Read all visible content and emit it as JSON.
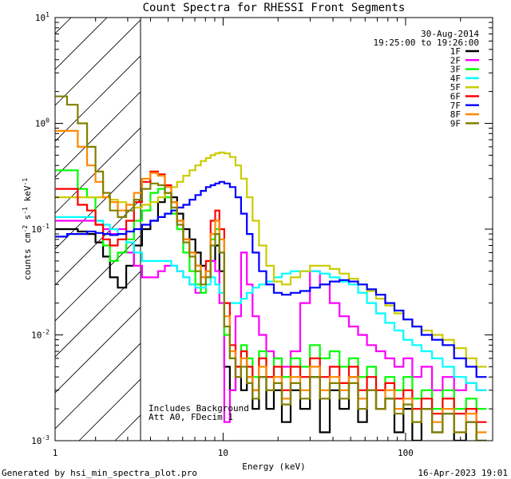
{
  "chart_data": {
    "type": "line",
    "title": "Count Spectra for RHESSI Front Segments",
    "xlabel": "Energy (keV)",
    "ylabel": "counts cm",
    "ylabel_sup1": "-2",
    "ylabel_mid": " s",
    "ylabel_sup2": "-1",
    "ylabel_end": " keV",
    "ylabel_sup3": "-1",
    "x_scale": "log",
    "y_scale": "log",
    "xlim": [
      1.2,
      300
    ],
    "ylim": [
      0.001,
      10
    ],
    "x_ticks": [
      {
        "value": 1,
        "base": "1",
        "exp": ""
      },
      {
        "value": 10,
        "base": "10",
        "exp": ""
      },
      {
        "value": 100,
        "base": "100",
        "exp": ""
      }
    ],
    "y_ticks": [
      {
        "value": 10,
        "base": "10",
        "exp": "1"
      },
      {
        "value": 1,
        "base": "10",
        "exp": "0"
      },
      {
        "value": 0.1,
        "base": "10",
        "exp": "-1"
      },
      {
        "value": 0.01,
        "base": "10",
        "exp": "-2"
      },
      {
        "value": 0.001,
        "base": "10",
        "exp": "-3"
      }
    ],
    "hatched_region": [
      1.2,
      3.0
    ],
    "date_label": "30-Aug-2014",
    "time_range": "19:25:00 to 19:26:00",
    "annotation_lines": [
      "Includes Background",
      "Att A0, FDecim 1"
    ],
    "legend_position": "top-right",
    "series": [
      {
        "name": "1F",
        "color": "#000000",
        "x": [
          1.3,
          1.5,
          1.7,
          1.9,
          2.1,
          2.3,
          2.5,
          2.8,
          3.1,
          3.4,
          3.8,
          4.2,
          4.6,
          5.0,
          5.4,
          5.8,
          6.3,
          6.8,
          7.3,
          7.8,
          8.3,
          8.8,
          9.3,
          9.8,
          10.5,
          11.3,
          12.1,
          13,
          14,
          15,
          16.5,
          18,
          20,
          22,
          25,
          28,
          32,
          36,
          41,
          46,
          52,
          58,
          65,
          73,
          82,
          92,
          103,
          115,
          130,
          150,
          170,
          200,
          230,
          260
        ],
        "y": [
          0.1,
          0.1,
          0.095,
          0.09,
          0.075,
          0.055,
          0.035,
          0.028,
          0.045,
          0.07,
          0.1,
          0.12,
          0.18,
          0.22,
          0.2,
          0.14,
          0.1,
          0.08,
          0.06,
          0.045,
          0.035,
          0.05,
          0.07,
          0.04,
          0.005,
          0.003,
          0.005,
          0.003,
          0.004,
          0.002,
          0.004,
          0.002,
          0.003,
          0.0015,
          0.003,
          0.002,
          0.004,
          0.0012,
          0.003,
          0.002,
          0.004,
          0.0015,
          0.003,
          0.002,
          0.0025,
          0.0012,
          0.002,
          0.001,
          0.002,
          0.0012,
          0.0018,
          0.001,
          0.0015,
          0.001
        ]
      },
      {
        "name": "2F",
        "color": "#ff00ff",
        "x": [
          1.3,
          1.5,
          1.7,
          1.9,
          2.1,
          2.3,
          2.5,
          2.8,
          3.1,
          3.4,
          3.8,
          4.2,
          4.6,
          5.0,
          5.4,
          5.8,
          6.3,
          6.8,
          7.3,
          7.8,
          8.3,
          8.8,
          9.3,
          9.8,
          10.5,
          11.3,
          12.1,
          13,
          14,
          15,
          16.5,
          18,
          20,
          22,
          25,
          28,
          32,
          36,
          41,
          46,
          52,
          58,
          65,
          73,
          82,
          92,
          103,
          115,
          130,
          150,
          170,
          200,
          230,
          260
        ],
        "y": [
          0.12,
          0.12,
          0.12,
          0.12,
          0.11,
          0.1,
          0.09,
          0.1,
          0.06,
          0.045,
          0.035,
          0.035,
          0.04,
          0.045,
          0.045,
          0.04,
          0.035,
          0.03,
          0.025,
          0.035,
          0.04,
          0.05,
          0.04,
          0.02,
          0.0015,
          0.003,
          0.015,
          0.06,
          0.03,
          0.015,
          0.01,
          0.007,
          0.006,
          0.005,
          0.007,
          0.02,
          0.04,
          0.03,
          0.02,
          0.015,
          0.012,
          0.01,
          0.008,
          0.007,
          0.006,
          0.005,
          0.006,
          0.004,
          0.005,
          0.003,
          0.004,
          0.003,
          0.0035,
          0.003
        ]
      },
      {
        "name": "3F",
        "color": "#00ff00",
        "x": [
          1.3,
          1.5,
          1.7,
          1.9,
          2.1,
          2.3,
          2.5,
          2.8,
          3.1,
          3.4,
          3.8,
          4.2,
          4.6,
          5.0,
          5.4,
          5.8,
          6.3,
          6.8,
          7.3,
          7.8,
          8.3,
          8.8,
          9.3,
          9.8,
          10.5,
          11.3,
          12.1,
          13,
          14,
          15,
          16.5,
          18,
          20,
          22,
          25,
          28,
          32,
          36,
          41,
          46,
          52,
          58,
          65,
          73,
          82,
          92,
          103,
          115,
          130,
          150,
          170,
          200,
          230,
          260
        ],
        "y": [
          0.36,
          0.36,
          0.24,
          0.2,
          0.12,
          0.07,
          0.05,
          0.06,
          0.08,
          0.12,
          0.15,
          0.22,
          0.24,
          0.2,
          0.14,
          0.1,
          0.06,
          0.04,
          0.03,
          0.025,
          0.04,
          0.08,
          0.1,
          0.06,
          0.01,
          0.006,
          0.005,
          0.008,
          0.006,
          0.004,
          0.007,
          0.004,
          0.006,
          0.004,
          0.006,
          0.005,
          0.008,
          0.006,
          0.007,
          0.005,
          0.006,
          0.004,
          0.005,
          0.003,
          0.004,
          0.003,
          0.004,
          0.0025,
          0.003,
          0.002,
          0.003,
          0.002,
          0.0025,
          0.002
        ]
      },
      {
        "name": "4F",
        "color": "#00ffff",
        "x": [
          1.3,
          1.5,
          1.7,
          1.9,
          2.1,
          2.3,
          2.5,
          2.8,
          3.1,
          3.4,
          3.8,
          4.2,
          4.6,
          5.0,
          5.4,
          5.8,
          6.3,
          6.8,
          7.3,
          7.8,
          8.3,
          8.8,
          9.3,
          9.8,
          10.5,
          11.3,
          12.1,
          13,
          14,
          15,
          16.5,
          18,
          20,
          22,
          25,
          28,
          32,
          36,
          41,
          46,
          52,
          58,
          65,
          73,
          82,
          92,
          103,
          115,
          130,
          150,
          170,
          200,
          230,
          260
        ],
        "y": [
          0.13,
          0.13,
          0.13,
          0.13,
          0.12,
          0.11,
          0.1,
          0.09,
          0.075,
          0.06,
          0.05,
          0.05,
          0.05,
          0.05,
          0.045,
          0.04,
          0.035,
          0.03,
          0.028,
          0.028,
          0.03,
          0.035,
          0.03,
          0.025,
          0.02,
          0.02,
          0.02,
          0.022,
          0.025,
          0.028,
          0.03,
          0.032,
          0.035,
          0.038,
          0.04,
          0.04,
          0.04,
          0.038,
          0.035,
          0.032,
          0.03,
          0.025,
          0.02,
          0.016,
          0.013,
          0.011,
          0.009,
          0.008,
          0.007,
          0.006,
          0.005,
          0.004,
          0.0035,
          0.003
        ]
      },
      {
        "name": "5F",
        "color": "#cccc00",
        "x": [
          1.3,
          1.5,
          1.7,
          1.9,
          2.1,
          2.3,
          2.5,
          2.8,
          3.1,
          3.4,
          3.8,
          4.2,
          4.6,
          5.0,
          5.4,
          5.8,
          6.3,
          6.8,
          7.3,
          7.8,
          8.3,
          8.8,
          9.3,
          9.8,
          10.5,
          11.3,
          12.1,
          13,
          14,
          15,
          16.5,
          18,
          20,
          22,
          25,
          28,
          32,
          36,
          41,
          46,
          52,
          58,
          65,
          73,
          82,
          92,
          103,
          115,
          130,
          150,
          170,
          200,
          230,
          260
        ],
        "y": [
          0.2,
          0.2,
          0.2,
          0.2,
          0.2,
          0.2,
          0.19,
          0.18,
          0.17,
          0.16,
          0.17,
          0.18,
          0.2,
          0.22,
          0.25,
          0.28,
          0.32,
          0.36,
          0.4,
          0.44,
          0.47,
          0.5,
          0.52,
          0.53,
          0.52,
          0.48,
          0.4,
          0.3,
          0.2,
          0.12,
          0.07,
          0.045,
          0.032,
          0.03,
          0.035,
          0.04,
          0.045,
          0.045,
          0.042,
          0.038,
          0.034,
          0.03,
          0.026,
          0.022,
          0.019,
          0.016,
          0.014,
          0.012,
          0.011,
          0.01,
          0.009,
          0.0075,
          0.006,
          0.005
        ]
      },
      {
        "name": "6F",
        "color": "#ff0000",
        "x": [
          1.3,
          1.5,
          1.7,
          1.9,
          2.1,
          2.3,
          2.5,
          2.8,
          3.1,
          3.4,
          3.8,
          4.2,
          4.6,
          5.0,
          5.4,
          5.8,
          6.3,
          6.8,
          7.3,
          7.8,
          8.3,
          8.8,
          9.3,
          9.8,
          10.5,
          11.3,
          12.1,
          13,
          14,
          15,
          16.5,
          18,
          20,
          22,
          25,
          28,
          32,
          36,
          41,
          46,
          52,
          58,
          65,
          73,
          82,
          92,
          103,
          115,
          130,
          150,
          170,
          200,
          230,
          260
        ],
        "y": [
          0.24,
          0.24,
          0.17,
          0.15,
          0.11,
          0.08,
          0.07,
          0.08,
          0.12,
          0.18,
          0.28,
          0.35,
          0.33,
          0.26,
          0.18,
          0.12,
          0.08,
          0.06,
          0.045,
          0.035,
          0.05,
          0.12,
          0.15,
          0.1,
          0.02,
          0.008,
          0.005,
          0.007,
          0.005,
          0.003,
          0.006,
          0.004,
          0.005,
          0.003,
          0.005,
          0.004,
          0.006,
          0.004,
          0.005,
          0.0035,
          0.005,
          0.003,
          0.004,
          0.003,
          0.0035,
          0.0025,
          0.003,
          0.002,
          0.0025,
          0.0018,
          0.0025,
          0.0018,
          0.002,
          0.0015
        ]
      },
      {
        "name": "7F",
        "color": "#0000ff",
        "x": [
          1.3,
          1.5,
          1.7,
          1.9,
          2.1,
          2.3,
          2.5,
          2.8,
          3.1,
          3.4,
          3.8,
          4.2,
          4.6,
          5.0,
          5.4,
          5.8,
          6.3,
          6.8,
          7.3,
          7.8,
          8.3,
          8.8,
          9.3,
          9.8,
          10.5,
          11.3,
          12.1,
          13,
          14,
          15,
          16.5,
          18,
          20,
          22,
          25,
          28,
          32,
          36,
          41,
          46,
          52,
          58,
          65,
          73,
          82,
          92,
          103,
          115,
          130,
          150,
          170,
          200,
          230,
          260
        ],
        "y": [
          0.085,
          0.09,
          0.09,
          0.095,
          0.092,
          0.09,
          0.088,
          0.09,
          0.095,
          0.1,
          0.11,
          0.12,
          0.13,
          0.14,
          0.15,
          0.16,
          0.17,
          0.19,
          0.21,
          0.23,
          0.25,
          0.26,
          0.27,
          0.28,
          0.27,
          0.25,
          0.2,
          0.14,
          0.09,
          0.06,
          0.04,
          0.03,
          0.025,
          0.024,
          0.025,
          0.026,
          0.028,
          0.03,
          0.032,
          0.033,
          0.032,
          0.03,
          0.027,
          0.024,
          0.02,
          0.017,
          0.014,
          0.012,
          0.01,
          0.009,
          0.008,
          0.006,
          0.005,
          0.004
        ]
      },
      {
        "name": "8F",
        "color": "#ff8800",
        "x": [
          1.3,
          1.5,
          1.7,
          1.9,
          2.1,
          2.3,
          2.5,
          2.8,
          3.1,
          3.4,
          3.8,
          4.2,
          4.6,
          5.0,
          5.4,
          5.8,
          6.3,
          6.8,
          7.3,
          7.8,
          8.3,
          8.8,
          9.3,
          9.8,
          10.5,
          11.3,
          12.1,
          13,
          14,
          15,
          16.5,
          18,
          20,
          22,
          25,
          28,
          32,
          36,
          41,
          46,
          52,
          58,
          65,
          73,
          82,
          92,
          103,
          115,
          130,
          150,
          170,
          200,
          230,
          260
        ],
        "y": [
          0.85,
          0.85,
          0.6,
          0.4,
          0.28,
          0.2,
          0.18,
          0.15,
          0.17,
          0.22,
          0.3,
          0.34,
          0.32,
          0.25,
          0.18,
          0.12,
          0.08,
          0.06,
          0.045,
          0.035,
          0.04,
          0.09,
          0.12,
          0.08,
          0.015,
          0.007,
          0.004,
          0.006,
          0.004,
          0.003,
          0.005,
          0.003,
          0.004,
          0.0025,
          0.004,
          0.003,
          0.005,
          0.003,
          0.004,
          0.003,
          0.004,
          0.0025,
          0.003,
          0.002,
          0.003,
          0.002,
          0.0025,
          0.0015,
          0.002,
          0.0015,
          0.002,
          0.0012,
          0.0018,
          0.0012
        ]
      },
      {
        "name": "9F",
        "color": "#808000",
        "x": [
          1.3,
          1.5,
          1.7,
          1.9,
          2.1,
          2.3,
          2.5,
          2.8,
          3.1,
          3.4,
          3.8,
          4.2,
          4.6,
          5.0,
          5.4,
          5.8,
          6.3,
          6.8,
          7.3,
          7.8,
          8.3,
          8.8,
          9.3,
          9.8,
          10.5,
          11.3,
          12.1,
          13,
          14,
          15,
          16.5,
          18,
          20,
          22,
          25,
          28,
          32,
          36,
          41,
          46,
          52,
          58,
          65,
          73,
          82,
          92,
          103,
          115,
          130,
          150,
          170,
          200,
          230,
          260
        ],
        "y": [
          1.8,
          1.5,
          1.0,
          0.6,
          0.35,
          0.22,
          0.15,
          0.13,
          0.15,
          0.19,
          0.24,
          0.27,
          0.26,
          0.22,
          0.16,
          0.11,
          0.075,
          0.055,
          0.04,
          0.03,
          0.035,
          0.07,
          0.09,
          0.06,
          0.012,
          0.006,
          0.004,
          0.005,
          0.0035,
          0.0025,
          0.004,
          0.003,
          0.0035,
          0.0022,
          0.0035,
          0.0025,
          0.004,
          0.0025,
          0.0035,
          0.0025,
          0.0035,
          0.002,
          0.003,
          0.002,
          0.0025,
          0.0018,
          0.0022,
          0.0015,
          0.002,
          0.0012,
          0.0018,
          0.0012,
          0.0015,
          0.001
        ]
      }
    ]
  },
  "footer": {
    "generated_by": "Generated by hsi_min_spectra_plot.pro",
    "timestamp": "16-Apr-2023 19:01"
  }
}
